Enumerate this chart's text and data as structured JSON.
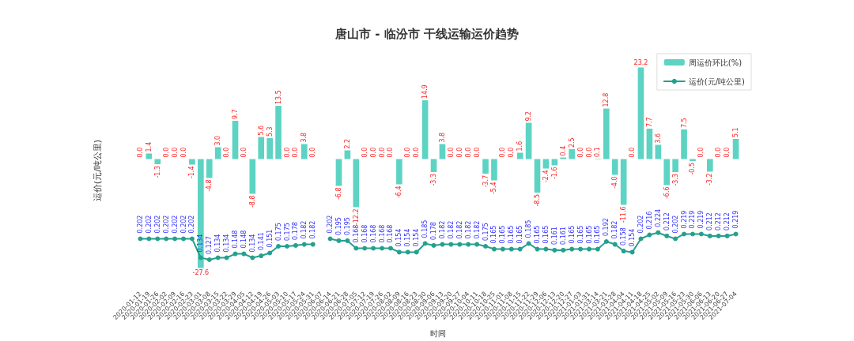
{
  "chart_data": {
    "type": "bar",
    "title": "唐山市 - 临汾市 干线运输运价趋势",
    "ylabel": "运价(元/吨公里)",
    "xlabel": "时间",
    "legend": "top right",
    "categories": [
      "2020-01-12",
      "2020-01-19",
      "2020-01-26",
      "2020-02-02",
      "2020-02-09",
      "2020-02-16",
      "2020-02-23",
      "2020-03-01",
      "2020-03-08",
      "2020-03-15",
      "2020-03-22",
      "2020-03-29",
      "2020-04-05",
      "2020-04-12",
      "2020-04-19",
      "2020-04-26",
      "2020-05-03",
      "2020-05-10",
      "2020-05-17",
      "2020-05-24",
      "2020-05-31",
      "2020-06-07",
      "2020-06-14",
      "2020-06-21",
      "2020-06-28",
      "2020-07-05",
      "2020-07-12",
      "2020-07-19",
      "2020-07-26",
      "2020-08-02",
      "2020-08-09",
      "2020-08-16",
      "2020-08-23",
      "2020-08-30",
      "2020-09-06",
      "2020-09-13",
      "2020-09-20",
      "2020-09-27",
      "2020-10-04",
      "2020-10-11",
      "2020-10-18",
      "2020-10-25",
      "2020-11-01",
      "2020-11-08",
      "2020-11-15",
      "2020-11-22",
      "2020-11-29",
      "2020-12-06",
      "2020-12-13",
      "2020-12-20",
      "2020-12-27",
      "2021-01-03",
      "2021-01-31",
      "2021-03-14",
      "2021-03-21",
      "2021-03-28",
      "2021-04-04",
      "2021-04-11",
      "2021-04-18",
      "2021-04-25",
      "2021-05-02",
      "2021-05-09",
      "2021-05-16",
      "2021-05-23",
      "2021-05-30",
      "2021-06-06",
      "2021-06-13",
      "2021-06-20",
      "2021-06-27",
      "2021-07-04"
    ],
    "series": [
      {
        "name": "周运价环比(%)",
        "color": "#5dd3c3",
        "values": [
          0.0,
          1.4,
          -1.3,
          0.0,
          0.0,
          0.0,
          -1.4,
          -27.6,
          -4.8,
          3.0,
          0.0,
          9.7,
          0.0,
          -8.8,
          5.6,
          5.3,
          13.5,
          0.0,
          0.0,
          3.8,
          0.0,
          null,
          null,
          -6.8,
          2.2,
          -12.2,
          0.0,
          0.0,
          0.0,
          0.0,
          -6.4,
          0.0,
          0.0,
          14.9,
          -3.3,
          3.8,
          0.0,
          0.0,
          0.0,
          0.0,
          -3.7,
          -5.4,
          0.0,
          0.0,
          1.6,
          9.2,
          -8.5,
          -2.4,
          -1.6,
          0.4,
          2.5,
          0.0,
          0.0,
          0.1,
          12.8,
          -4.0,
          -11.6,
          0.0,
          23.2,
          7.7,
          3.6,
          -6.6,
          -3.3,
          7.5,
          -0.5,
          0.0,
          -3.2,
          0.0,
          0.0,
          5.1
        ],
        "value_labels": [
          "0.0",
          "1.4",
          "-1.3",
          "0.0",
          "0.0",
          "0.0",
          "-1.4",
          "-27.6",
          "-4.8",
          "3.0",
          "0.0",
          "9.7",
          "0.0",
          "-8.8",
          "5.6",
          "5.3",
          "13.5",
          "0.0",
          "0.0",
          "3.8",
          "0.0",
          null,
          null,
          "-6.8",
          "2.2",
          "-12.2",
          "0.0",
          "0.0",
          "0.0",
          "0.0",
          "-6.4",
          "0.0",
          "0.0",
          "14.9",
          "-3.3",
          "3.8",
          "0.0",
          "0.0",
          "0.0",
          "0.0",
          "-3.7",
          "-5.4",
          "0.0",
          "0.0",
          "1.6",
          "9.2",
          "-8.5",
          "-2.4",
          "-1.6",
          "0.4",
          "2.5",
          "0.0",
          "0.0",
          "0.1",
          "12.8",
          "-4.0",
          "-11.6",
          "0.0",
          "23.2",
          "7.7",
          "3.6",
          "-6.6",
          "-3.3",
          "7.5",
          "-0.5",
          "0.0",
          "-3.2",
          "0.0",
          "0.0",
          "5.1"
        ]
      },
      {
        "name": "运价(元/吨公里)",
        "type": "line",
        "axis": "y2",
        "color": "#26a08e",
        "marker": "circle",
        "values": [
          0.202,
          0.202,
          0.202,
          0.202,
          0.202,
          0.202,
          0.202,
          0.134,
          0.127,
          0.134,
          0.134,
          0.148,
          0.148,
          0.134,
          0.141,
          0.151,
          0.175,
          0.175,
          0.178,
          0.182,
          0.182,
          null,
          0.202,
          0.195,
          0.195,
          0.168,
          0.168,
          0.168,
          0.168,
          0.168,
          0.154,
          0.154,
          0.154,
          0.185,
          0.178,
          0.182,
          0.182,
          0.182,
          0.182,
          0.182,
          0.175,
          0.165,
          0.165,
          0.165,
          0.165,
          0.185,
          0.165,
          0.165,
          0.161,
          0.161,
          0.165,
          0.165,
          0.165,
          0.165,
          0.192,
          0.182,
          0.158,
          0.154,
          0.202,
          0.216,
          0.224,
          0.212,
          0.202,
          0.219,
          0.219,
          0.219,
          0.212,
          0.212,
          0.212,
          0.219
        ],
        "value_labels": [
          "0.202",
          "0.202",
          "0.202",
          "0.202",
          "0.202",
          "0.202",
          "0.202",
          "0.134",
          "0.127",
          "0.134",
          "0.134",
          "0.148",
          "0.148",
          "0.134",
          "0.141",
          "0.151",
          "0.175",
          "0.175",
          "0.178",
          "0.182",
          "0.182",
          null,
          "0.202",
          "0.195",
          "0.195",
          "0.168",
          "0.168",
          "0.168",
          "0.168",
          "0.168",
          "0.154",
          "0.154",
          "0.154",
          "0.185",
          "0.178",
          "0.182",
          "0.182",
          "0.182",
          "0.182",
          "0.182",
          "0.175",
          "0.165",
          "0.165",
          "0.165",
          "0.165",
          "0.185",
          "0.165",
          "0.165",
          "0.161",
          "0.161",
          "0.165",
          "0.165",
          "0.165",
          "0.165",
          "0.192",
          "0.182",
          "0.158",
          "0.154",
          "0.202",
          "0.216",
          "0.224",
          "0.212",
          "0.202",
          "0.219",
          "0.219",
          "0.219",
          "0.212",
          "0.212",
          "0.212",
          "0.219"
        ]
      }
    ]
  }
}
